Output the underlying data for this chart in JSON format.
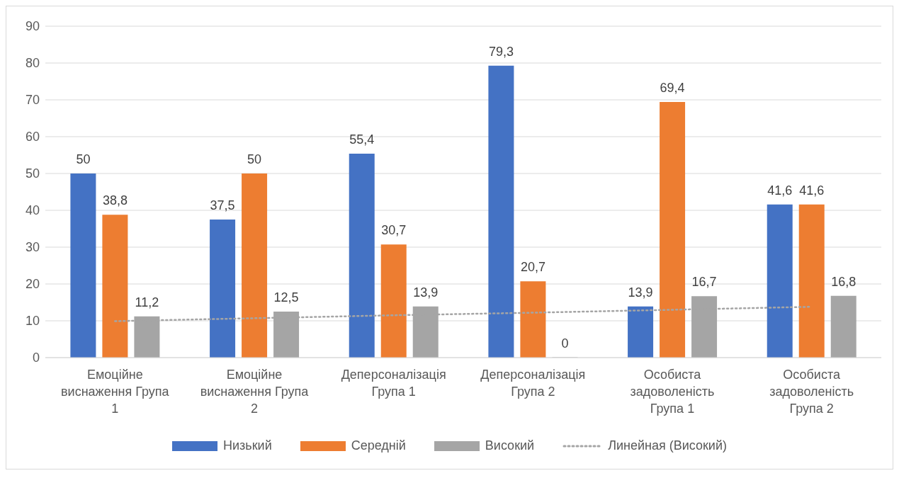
{
  "chart_data": {
    "type": "bar",
    "categories": [
      "Емоційне виснаження Група 1",
      "Емоційне виснаження Група 2",
      "Деперсоналізація Група 1",
      "Деперсоналізація Група 2",
      "Особиста задоволеність Група 1",
      "Особиста задоволеність Група 2"
    ],
    "series": [
      {
        "name": "Низький",
        "color": "#4472c4",
        "values": [
          50,
          37.5,
          55.4,
          79.3,
          13.9,
          41.6
        ],
        "value_labels": [
          "50",
          "37,5",
          "55,4",
          "79,3",
          "13,9",
          "41,6"
        ]
      },
      {
        "name": "Середній",
        "color": "#ed7d31",
        "values": [
          38.8,
          50,
          30.7,
          20.7,
          69.4,
          41.6
        ],
        "value_labels": [
          "38,8",
          "50",
          "30,7",
          "20,7",
          "69,4",
          "41,6"
        ]
      },
      {
        "name": "Високий",
        "color": "#a5a5a5",
        "values": [
          11.2,
          12.5,
          13.9,
          0,
          16.7,
          16.8
        ],
        "value_labels": [
          "11,2",
          "12,5",
          "13,9",
          "0",
          "16,7",
          "16,8"
        ]
      },
      {
        "name": "Линейная (Високий)",
        "type": "line",
        "color": "#a5a5a5",
        "line_style": "dotted",
        "values": [
          9.9,
          10.7,
          11.5,
          12.2,
          13.0,
          13.8
        ]
      }
    ],
    "ylim": [
      0,
      90
    ],
    "yticks": [
      0,
      10,
      20,
      30,
      40,
      50,
      60,
      70,
      80,
      90
    ],
    "grid": "y",
    "legend": "bottom"
  }
}
